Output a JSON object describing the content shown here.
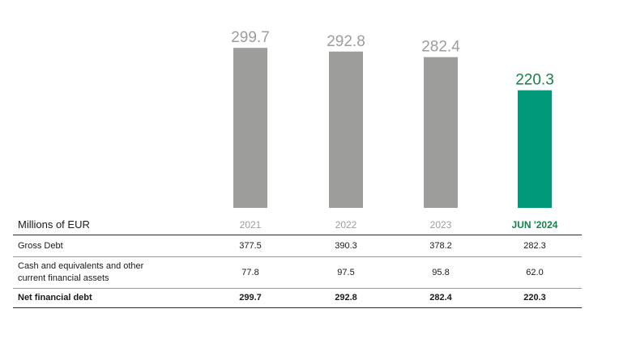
{
  "chart_data": {
    "type": "bar",
    "categories": [
      "2021",
      "2022",
      "2023",
      "JUN '2024"
    ],
    "values": [
      299.7,
      292.8,
      282.4,
      220.3
    ],
    "value_labels": [
      "299.7",
      "292.8",
      "282.4",
      "220.3"
    ],
    "ylim": [
      0,
      300
    ],
    "bar_colors": [
      "#9d9d9c",
      "#9d9d9c",
      "#9d9d9c",
      "#009a7a"
    ],
    "label_colors": [
      "#9d9d9c",
      "#9d9d9c",
      "#9d9d9c",
      "#13834a"
    ],
    "grid": false
  },
  "table": {
    "header": "Millions of EUR",
    "years": [
      "2021",
      "2022",
      "2023",
      "JUN '2024"
    ],
    "rows": [
      {
        "label": "Gross Debt",
        "values": [
          "377.5",
          "390.3",
          "378.2",
          "282.3"
        ]
      },
      {
        "label_line1": "Cash and equivalents and other",
        "label_line2": "current financial assets",
        "values": [
          "77.8",
          "97.5",
          "95.8",
          "62.0"
        ]
      },
      {
        "label": "Net financial debt",
        "values": [
          "299.7",
          "292.8",
          "282.4",
          "220.3"
        ]
      }
    ]
  }
}
